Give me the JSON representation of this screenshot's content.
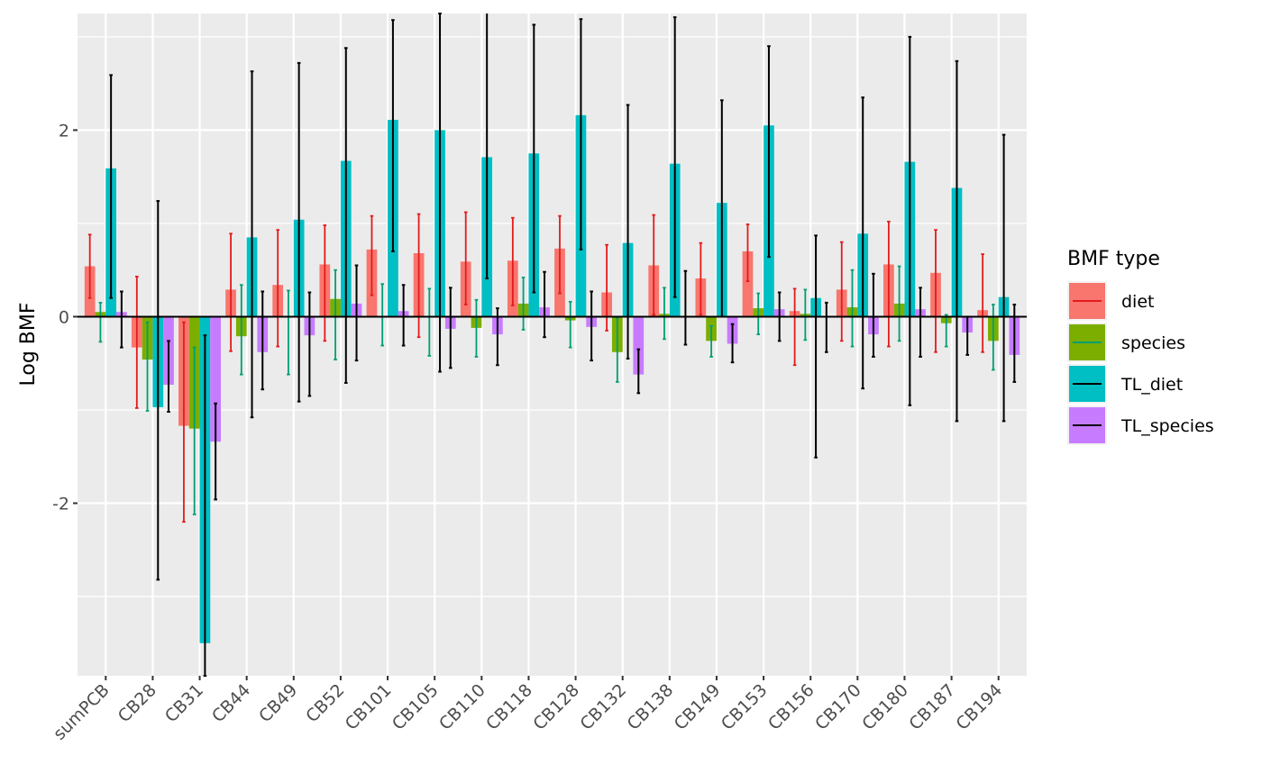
{
  "chart_data": {
    "type": "bar",
    "title": "",
    "xlabel": "",
    "ylabel": "Log BMF",
    "ylim": [
      -3.85,
      3.25
    ],
    "yticks": [
      -2,
      0,
      2
    ],
    "ytick_labels": [
      "-2",
      "0",
      "2"
    ],
    "grid": true,
    "legend_position": "right",
    "legend_title": "BMF type",
    "categories": [
      "sumPCB",
      "CB28",
      "CB31",
      "CB44",
      "CB49",
      "CB52",
      "CB101",
      "CB105",
      "CB110",
      "CB118",
      "CB128",
      "CB132",
      "CB138",
      "CB149",
      "CB153",
      "CB156",
      "CB170",
      "CB180",
      "CB187",
      "CB194"
    ],
    "series": [
      {
        "name": "diet",
        "color": "#F8766D",
        "error_color": "#E41A1C",
        "values": [
          0.54,
          -0.33,
          -1.17,
          0.29,
          0.34,
          0.56,
          0.72,
          0.68,
          0.59,
          0.6,
          0.73,
          0.26,
          0.55,
          0.41,
          0.7,
          0.06,
          0.29,
          0.56,
          0.47,
          0.07
        ],
        "err_low": [
          0.2,
          -0.98,
          -2.2,
          -0.37,
          -0.32,
          -0.26,
          0.23,
          -0.22,
          0.13,
          0.12,
          0.25,
          -0.15,
          0.02,
          0.02,
          0.38,
          -0.52,
          -0.26,
          -0.32,
          -0.38,
          -0.38
        ],
        "err_high": [
          0.88,
          0.43,
          -0.06,
          0.89,
          0.93,
          0.98,
          1.08,
          1.1,
          1.12,
          1.06,
          1.08,
          0.77,
          1.09,
          0.79,
          0.99,
          0.3,
          0.8,
          1.02,
          0.93,
          0.67
        ]
      },
      {
        "name": "species",
        "color": "#7CAE00",
        "error_color": "#009E73",
        "values": [
          0.05,
          -0.46,
          -1.2,
          -0.21,
          0.0,
          0.19,
          0.0,
          0.0,
          -0.12,
          0.14,
          -0.04,
          -0.38,
          0.03,
          -0.26,
          0.09,
          0.03,
          0.1,
          0.14,
          -0.07,
          -0.26
        ],
        "err_low": [
          -0.27,
          -1.01,
          -2.12,
          -0.62,
          -0.62,
          -0.46,
          -0.31,
          -0.42,
          -0.43,
          -0.14,
          -0.33,
          -0.7,
          -0.24,
          -0.43,
          -0.19,
          -0.25,
          -0.32,
          -0.26,
          -0.32,
          -0.57
        ],
        "err_high": [
          0.15,
          -0.06,
          -0.33,
          0.34,
          0.28,
          0.5,
          0.35,
          0.3,
          0.18,
          0.42,
          0.16,
          -0.01,
          0.31,
          -0.1,
          0.25,
          0.29,
          0.5,
          0.54,
          0.02,
          0.13
        ]
      },
      {
        "name": "TL_diet",
        "color": "#00BFC4",
        "error_color": "#000000",
        "values": [
          1.59,
          -0.97,
          -3.5,
          0.85,
          1.04,
          1.67,
          2.11,
          2.0,
          1.71,
          1.75,
          2.16,
          0.79,
          1.64,
          1.22,
          2.05,
          0.2,
          0.89,
          1.66,
          1.38,
          0.21
        ],
        "err_low": [
          0.2,
          -2.82,
          -3.85,
          -1.08,
          -0.91,
          -0.71,
          0.7,
          -0.59,
          0.41,
          0.26,
          0.72,
          -0.45,
          0.21,
          0.0,
          0.64,
          -1.51,
          -0.77,
          -0.95,
          -1.12,
          -1.12
        ],
        "err_high": [
          2.59,
          1.24,
          -0.2,
          2.63,
          2.72,
          2.88,
          3.18,
          3.25,
          3.3,
          3.13,
          3.19,
          2.27,
          3.21,
          2.32,
          2.9,
          0.87,
          2.35,
          3.0,
          2.74,
          1.95
        ]
      },
      {
        "name": "TL_species",
        "color": "#C77CFF",
        "error_color": "#000000",
        "values": [
          0.05,
          -0.73,
          -1.34,
          -0.38,
          -0.2,
          0.14,
          0.06,
          -0.13,
          -0.19,
          0.1,
          -0.11,
          -0.62,
          0.0,
          -0.29,
          0.08,
          0.0,
          -0.19,
          0.08,
          -0.17,
          -0.41
        ],
        "err_low": [
          -0.33,
          -1.02,
          -1.96,
          -0.78,
          -0.85,
          -0.47,
          -0.31,
          -0.55,
          -0.52,
          -0.22,
          -0.47,
          -0.82,
          -0.3,
          -0.49,
          -0.26,
          -0.38,
          -0.43,
          -0.43,
          -0.41,
          -0.7
        ],
        "err_high": [
          0.27,
          -0.26,
          -0.93,
          0.27,
          0.26,
          0.55,
          0.34,
          0.31,
          0.09,
          0.48,
          0.27,
          -0.35,
          0.49,
          -0.08,
          0.26,
          0.15,
          0.46,
          0.31,
          0.0,
          0.13
        ]
      }
    ]
  }
}
